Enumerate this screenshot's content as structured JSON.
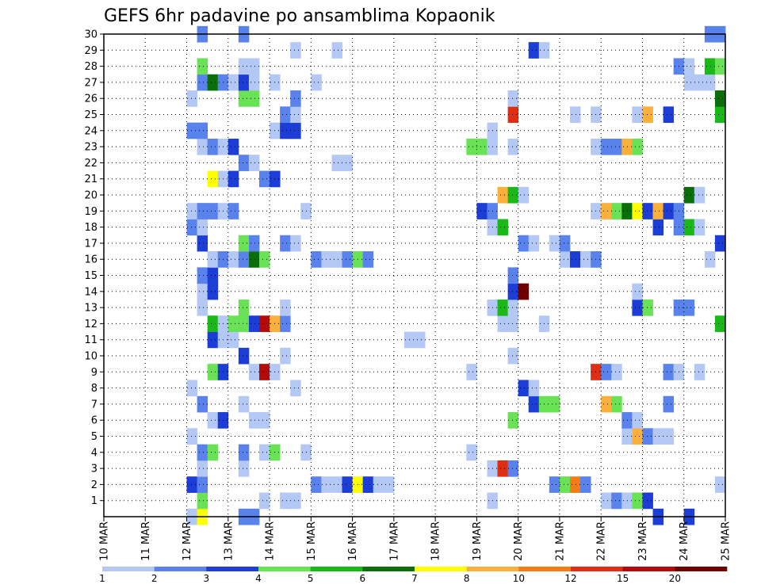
{
  "chart_data": {
    "type": "heatmap",
    "title": "GEFS 6hr padavine po ansamblima Kopaonik",
    "xlabel": "",
    "ylabel": "",
    "x_tick_labels": [
      "10 MAR",
      "11 MAR",
      "12 MAR",
      "13 MAR",
      "14 MAR",
      "15 MAR",
      "16 MAR",
      "17 MAR",
      "18 MAR",
      "19 MAR",
      "20 MAR",
      "21 MAR",
      "22 MAR",
      "23 MAR",
      "24 MAR",
      "25 MAR"
    ],
    "y_tick_labels": [
      "1",
      "2",
      "3",
      "4",
      "5",
      "6",
      "7",
      "8",
      "9",
      "10",
      "11",
      "12",
      "13",
      "14",
      "15",
      "16",
      "17",
      "18",
      "19",
      "20",
      "21",
      "22",
      "23",
      "24",
      "25",
      "26",
      "27",
      "28",
      "29",
      "30"
    ],
    "x_range_days": [
      10,
      25
    ],
    "y_range_members": [
      0,
      30
    ],
    "grid": "dotted",
    "colorbar": {
      "ticks": [
        "1",
        "2",
        "3",
        "4",
        "5",
        "6",
        "7",
        "8",
        "10",
        "12",
        "15",
        "20"
      ],
      "colors": [
        "#b4c8f5",
        "#5a82ec",
        "#1c3ed6",
        "#6ae256",
        "#1ab818",
        "#0a6e0a",
        "#ffff00",
        "#fbb03c",
        "#f57c14",
        "#df2e14",
        "#b40a0a",
        "#6e0000"
      ]
    },
    "cell_hours": 6,
    "level_note": "level index per cell: 0=1-2,1=2-3,2=3-4,3=4-5,4=5-6,5=6-7,6=7-8,7=8-10,8=10-12,9=12-15,10=15-20,11=20+",
    "cells": [
      [
        "12 MAR 00Z",
        0,
        0
      ],
      [
        "12 MAR 06Z",
        0,
        6
      ],
      [
        "13 MAR 06Z",
        0,
        1
      ],
      [
        "13 MAR 12Z",
        0,
        1
      ],
      [
        "23 MAR 06Z",
        0,
        2
      ],
      [
        "24 MAR 00Z",
        0,
        2
      ],
      [
        "12 MAR 06Z",
        1,
        3
      ],
      [
        "19 MAR 06Z",
        1,
        0
      ],
      [
        "22 MAR 00Z",
        1,
        0
      ],
      [
        "22 MAR 06Z",
        1,
        1
      ],
      [
        "22 MAR 12Z",
        1,
        0
      ],
      [
        "22 MAR 18Z",
        1,
        3
      ],
      [
        "23 MAR 00Z",
        1,
        2
      ],
      [
        "14 MAR 06Z",
        1,
        0
      ],
      [
        "14 MAR 12Z",
        1,
        0
      ],
      [
        "13 MAR 18Z",
        1,
        0
      ],
      [
        "12 MAR 00Z",
        2,
        2
      ],
      [
        "12 MAR 06Z",
        2,
        1
      ],
      [
        "15 MAR 00Z",
        2,
        1
      ],
      [
        "15 MAR 06Z",
        2,
        0
      ],
      [
        "15 MAR 12Z",
        2,
        0
      ],
      [
        "15 MAR 18Z",
        2,
        2
      ],
      [
        "16 MAR 00Z",
        2,
        6
      ],
      [
        "16 MAR 06Z",
        2,
        2
      ],
      [
        "16 MAR 12Z",
        2,
        0
      ],
      [
        "16 MAR 18Z",
        2,
        0
      ],
      [
        "20 MAR 18Z",
        2,
        1
      ],
      [
        "21 MAR 00Z",
        2,
        3
      ],
      [
        "21 MAR 06Z",
        2,
        8
      ],
      [
        "21 MAR 12Z",
        2,
        1
      ],
      [
        "24 MAR 18Z",
        2,
        0
      ],
      [
        "12 MAR 06Z",
        3,
        0
      ],
      [
        "13 MAR 06Z",
        3,
        0
      ],
      [
        "19 MAR 06Z",
        3,
        0
      ],
      [
        "19 MAR 12Z",
        3,
        9
      ],
      [
        "19 MAR 18Z",
        3,
        1
      ],
      [
        "12 MAR 06Z",
        4,
        1
      ],
      [
        "12 MAR 12Z",
        4,
        3
      ],
      [
        "13 MAR 06Z",
        4,
        1
      ],
      [
        "13 MAR 18Z",
        4,
        0
      ],
      [
        "14 MAR 00Z",
        4,
        3
      ],
      [
        "14 MAR 18Z",
        4,
        0
      ],
      [
        "18 MAR 18Z",
        4,
        0
      ],
      [
        "12 MAR 00Z",
        5,
        0
      ],
      [
        "22 MAR 12Z",
        5,
        0
      ],
      [
        "22 MAR 18Z",
        5,
        7
      ],
      [
        "23 MAR 00Z",
        5,
        1
      ],
      [
        "23 MAR 06Z",
        5,
        0
      ],
      [
        "23 MAR 12Z",
        5,
        0
      ],
      [
        "12 MAR 12Z",
        6,
        0
      ],
      [
        "12 MAR 18Z",
        6,
        2
      ],
      [
        "13 MAR 12Z",
        6,
        0
      ],
      [
        "13 MAR 18Z",
        6,
        0
      ],
      [
        "19 MAR 18Z",
        6,
        3
      ],
      [
        "22 MAR 12Z",
        6,
        1
      ],
      [
        "22 MAR 18Z",
        6,
        0
      ],
      [
        "12 MAR 06Z",
        7,
        1
      ],
      [
        "13 MAR 06Z",
        7,
        0
      ],
      [
        "20 MAR 06Z",
        7,
        2
      ],
      [
        "20 MAR 12Z",
        7,
        3
      ],
      [
        "20 MAR 18Z",
        7,
        3
      ],
      [
        "22 MAR 00Z",
        7,
        7
      ],
      [
        "22 MAR 06Z",
        7,
        3
      ],
      [
        "23 MAR 12Z",
        7,
        1
      ],
      [
        "12 MAR 00Z",
        8,
        0
      ],
      [
        "14 MAR 12Z",
        8,
        0
      ],
      [
        "20 MAR 00Z",
        8,
        2
      ],
      [
        "20 MAR 06Z",
        8,
        0
      ],
      [
        "12 MAR 12Z",
        9,
        3
      ],
      [
        "12 MAR 18Z",
        9,
        2
      ],
      [
        "13 MAR 12Z",
        9,
        0
      ],
      [
        "13 MAR 18Z",
        9,
        10
      ],
      [
        "14 MAR 00Z",
        9,
        0
      ],
      [
        "18 MAR 18Z",
        9,
        0
      ],
      [
        "21 MAR 18Z",
        9,
        9
      ],
      [
        "22 MAR 00Z",
        9,
        1
      ],
      [
        "22 MAR 06Z",
        9,
        0
      ],
      [
        "23 MAR 12Z",
        9,
        1
      ],
      [
        "23 MAR 18Z",
        9,
        0
      ],
      [
        "24 MAR 06Z",
        9,
        0
      ],
      [
        "13 MAR 06Z",
        10,
        2
      ],
      [
        "14 MAR 06Z",
        10,
        0
      ],
      [
        "19 MAR 18Z",
        10,
        0
      ],
      [
        "12 MAR 12Z",
        11,
        2
      ],
      [
        "12 MAR 18Z",
        11,
        0
      ],
      [
        "13 MAR 00Z",
        11,
        0
      ],
      [
        "17 MAR 06Z",
        11,
        0
      ],
      [
        "17 MAR 12Z",
        11,
        0
      ],
      [
        "12 MAR 12Z",
        12,
        4
      ],
      [
        "12 MAR 18Z",
        12,
        0
      ],
      [
        "13 MAR 00Z",
        12,
        3
      ],
      [
        "13 MAR 06Z",
        12,
        3
      ],
      [
        "13 MAR 12Z",
        12,
        2
      ],
      [
        "13 MAR 18Z",
        12,
        10
      ],
      [
        "14 MAR 00Z",
        12,
        7
      ],
      [
        "14 MAR 06Z",
        12,
        1
      ],
      [
        "19 MAR 12Z",
        12,
        0
      ],
      [
        "19 MAR 18Z",
        12,
        0
      ],
      [
        "20 MAR 12Z",
        12,
        0
      ],
      [
        "24 MAR 18Z",
        12,
        4
      ],
      [
        "12 MAR 06Z",
        13,
        0
      ],
      [
        "13 MAR 06Z",
        13,
        3
      ],
      [
        "14 MAR 06Z",
        13,
        0
      ],
      [
        "19 MAR 06Z",
        13,
        0
      ],
      [
        "19 MAR 12Z",
        13,
        4
      ],
      [
        "19 MAR 18Z",
        13,
        0
      ],
      [
        "22 MAR 18Z",
        13,
        2
      ],
      [
        "23 MAR 00Z",
        13,
        3
      ],
      [
        "23 MAR 18Z",
        13,
        1
      ],
      [
        "24 MAR 00Z",
        13,
        1
      ],
      [
        "12 MAR 06Z",
        14,
        0
      ],
      [
        "12 MAR 12Z",
        14,
        2
      ],
      [
        "19 MAR 18Z",
        14,
        2
      ],
      [
        "20 MAR 00Z",
        14,
        11
      ],
      [
        "22 MAR 18Z",
        14,
        0
      ],
      [
        "12 MAR 06Z",
        15,
        1
      ],
      [
        "12 MAR 12Z",
        15,
        2
      ],
      [
        "19 MAR 18Z",
        15,
        1
      ],
      [
        "12 MAR 12Z",
        16,
        0
      ],
      [
        "12 MAR 18Z",
        16,
        1
      ],
      [
        "13 MAR 00Z",
        16,
        0
      ],
      [
        "13 MAR 06Z",
        16,
        1
      ],
      [
        "13 MAR 12Z",
        16,
        5
      ],
      [
        "13 MAR 18Z",
        16,
        3
      ],
      [
        "15 MAR 00Z",
        16,
        1
      ],
      [
        "15 MAR 06Z",
        16,
        0
      ],
      [
        "15 MAR 12Z",
        16,
        0
      ],
      [
        "15 MAR 18Z",
        16,
        1
      ],
      [
        "16 MAR 00Z",
        16,
        3
      ],
      [
        "16 MAR 06Z",
        16,
        1
      ],
      [
        "21 MAR 00Z",
        16,
        0
      ],
      [
        "21 MAR 06Z",
        16,
        2
      ],
      [
        "21 MAR 12Z",
        16,
        0
      ],
      [
        "21 MAR 18Z",
        16,
        1
      ],
      [
        "24 MAR 12Z",
        16,
        0
      ],
      [
        "12 MAR 06Z",
        17,
        2
      ],
      [
        "13 MAR 06Z",
        17,
        3
      ],
      [
        "13 MAR 12Z",
        17,
        1
      ],
      [
        "14 MAR 06Z",
        17,
        1
      ],
      [
        "14 MAR 12Z",
        17,
        0
      ],
      [
        "20 MAR 00Z",
        17,
        1
      ],
      [
        "20 MAR 06Z",
        17,
        0
      ],
      [
        "20 MAR 18Z",
        17,
        0
      ],
      [
        "21 MAR 00Z",
        17,
        1
      ],
      [
        "24 MAR 18Z",
        17,
        2
      ],
      [
        "12 MAR 00Z",
        18,
        1
      ],
      [
        "12 MAR 06Z",
        18,
        0
      ],
      [
        "19 MAR 06Z",
        18,
        0
      ],
      [
        "19 MAR 12Z",
        18,
        4
      ],
      [
        "23 MAR 06Z",
        18,
        2
      ],
      [
        "23 MAR 18Z",
        18,
        1
      ],
      [
        "24 MAR 00Z",
        18,
        4
      ],
      [
        "24 MAR 06Z",
        18,
        0
      ],
      [
        "12 MAR 00Z",
        19,
        0
      ],
      [
        "12 MAR 06Z",
        19,
        1
      ],
      [
        "12 MAR 12Z",
        19,
        1
      ],
      [
        "12 MAR 18Z",
        19,
        0
      ],
      [
        "13 MAR 00Z",
        19,
        1
      ],
      [
        "14 MAR 18Z",
        19,
        0
      ],
      [
        "19 MAR 00Z",
        19,
        2
      ],
      [
        "19 MAR 06Z",
        19,
        1
      ],
      [
        "21 MAR 18Z",
        19,
        0
      ],
      [
        "22 MAR 00Z",
        19,
        7
      ],
      [
        "22 MAR 06Z",
        19,
        3
      ],
      [
        "22 MAR 12Z",
        19,
        5
      ],
      [
        "22 MAR 18Z",
        19,
        6
      ],
      [
        "23 MAR 00Z",
        19,
        2
      ],
      [
        "23 MAR 06Z",
        19,
        7
      ],
      [
        "23 MAR 12Z",
        19,
        2
      ],
      [
        "23 MAR 18Z",
        19,
        1
      ],
      [
        "19 MAR 12Z",
        20,
        7
      ],
      [
        "19 MAR 18Z",
        20,
        4
      ],
      [
        "20 MAR 00Z",
        20,
        0
      ],
      [
        "24 MAR 00Z",
        20,
        5
      ],
      [
        "24 MAR 06Z",
        20,
        0
      ],
      [
        "12 MAR 12Z",
        21,
        6
      ],
      [
        "12 MAR 18Z",
        21,
        0
      ],
      [
        "13 MAR 00Z",
        21,
        2
      ],
      [
        "13 MAR 18Z",
        21,
        1
      ],
      [
        "14 MAR 00Z",
        21,
        2
      ],
      [
        "13 MAR 06Z",
        22,
        1
      ],
      [
        "13 MAR 12Z",
        22,
        0
      ],
      [
        "15 MAR 12Z",
        22,
        0
      ],
      [
        "15 MAR 18Z",
        22,
        0
      ],
      [
        "12 MAR 06Z",
        23,
        0
      ],
      [
        "12 MAR 12Z",
        23,
        1
      ],
      [
        "12 MAR 18Z",
        23,
        0
      ],
      [
        "13 MAR 00Z",
        23,
        2
      ],
      [
        "18 MAR 18Z",
        23,
        3
      ],
      [
        "19 MAR 00Z",
        23,
        3
      ],
      [
        "19 MAR 06Z",
        23,
        0
      ],
      [
        "19 MAR 18Z",
        23,
        0
      ],
      [
        "21 MAR 18Z",
        23,
        0
      ],
      [
        "22 MAR 00Z",
        23,
        1
      ],
      [
        "22 MAR 06Z",
        23,
        1
      ],
      [
        "22 MAR 12Z",
        23,
        7
      ],
      [
        "22 MAR 18Z",
        23,
        3
      ],
      [
        "12 MAR 00Z",
        24,
        1
      ],
      [
        "12 MAR 06Z",
        24,
        1
      ],
      [
        "14 MAR 00Z",
        24,
        0
      ],
      [
        "14 MAR 06Z",
        24,
        2
      ],
      [
        "14 MAR 12Z",
        24,
        2
      ],
      [
        "19 MAR 06Z",
        24,
        0
      ],
      [
        "14 MAR 06Z",
        25,
        1
      ],
      [
        "14 MAR 12Z",
        25,
        0
      ],
      [
        "19 MAR 18Z",
        25,
        9
      ],
      [
        "21 MAR 06Z",
        25,
        0
      ],
      [
        "21 MAR 18Z",
        25,
        0
      ],
      [
        "22 MAR 18Z",
        25,
        0
      ],
      [
        "23 MAR 00Z",
        25,
        7
      ],
      [
        "23 MAR 12Z",
        25,
        2
      ],
      [
        "24 MAR 18Z",
        25,
        4
      ],
      [
        "12 MAR 00Z",
        26,
        0
      ],
      [
        "13 MAR 06Z",
        26,
        3
      ],
      [
        "13 MAR 12Z",
        26,
        3
      ],
      [
        "14 MAR 12Z",
        26,
        1
      ],
      [
        "19 MAR 18Z",
        26,
        0
      ],
      [
        "24 MAR 18Z",
        26,
        5
      ],
      [
        "12 MAR 06Z",
        27,
        1
      ],
      [
        "12 MAR 12Z",
        27,
        5
      ],
      [
        "12 MAR 18Z",
        27,
        1
      ],
      [
        "13 MAR 00Z",
        27,
        0
      ],
      [
        "13 MAR 06Z",
        27,
        2
      ],
      [
        "13 MAR 12Z",
        27,
        0
      ],
      [
        "14 MAR 00Z",
        27,
        0
      ],
      [
        "15 MAR 00Z",
        27,
        0
      ],
      [
        "24 MAR 00Z",
        27,
        0
      ],
      [
        "24 MAR 06Z",
        27,
        0
      ],
      [
        "24 MAR 12Z",
        27,
        0
      ],
      [
        "12 MAR 06Z",
        28,
        3
      ],
      [
        "13 MAR 06Z",
        28,
        0
      ],
      [
        "13 MAR 12Z",
        28,
        0
      ],
      [
        "23 MAR 18Z",
        28,
        1
      ],
      [
        "24 MAR 00Z",
        28,
        0
      ],
      [
        "24 MAR 12Z",
        28,
        4
      ],
      [
        "24 MAR 18Z",
        28,
        3
      ],
      [
        "14 MAR 12Z",
        29,
        0
      ],
      [
        "15 MAR 12Z",
        29,
        0
      ],
      [
        "20 MAR 06Z",
        29,
        2
      ],
      [
        "20 MAR 12Z",
        29,
        0
      ],
      [
        "12 MAR 06Z",
        30,
        1
      ],
      [
        "13 MAR 06Z",
        30,
        1
      ],
      [
        "24 MAR 12Z",
        30,
        1
      ],
      [
        "24 MAR 18Z",
        30,
        1
      ]
    ]
  }
}
